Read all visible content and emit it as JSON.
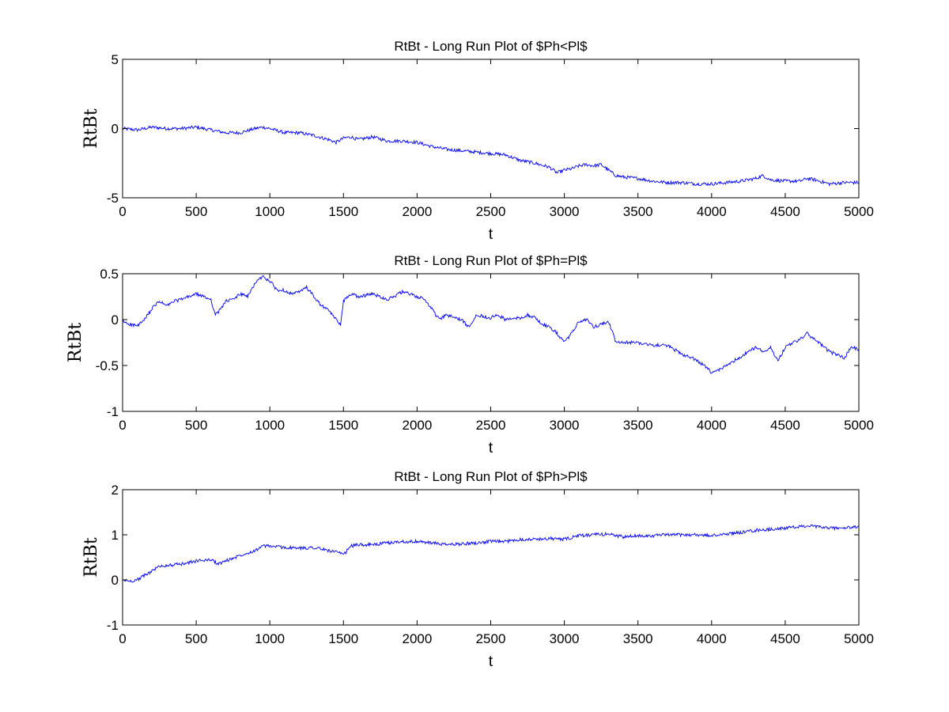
{
  "chart_data": [
    {
      "type": "line",
      "title": "RtBt - Long Run Plot of $Ph<Pl$",
      "xlabel": "t",
      "ylabel": "RtBt",
      "xlim": [
        0,
        5000
      ],
      "ylim": [
        -5,
        5
      ],
      "xticks": [
        0,
        500,
        1000,
        1500,
        2000,
        2500,
        3000,
        3500,
        4000,
        4500,
        5000
      ],
      "yticks": [
        -5,
        0,
        5
      ],
      "ytick_labels": [
        "-5",
        "0",
        "5"
      ],
      "grid": false,
      "color": "#0000ff",
      "series": [
        {
          "x": [
            0,
            100,
            200,
            300,
            400,
            500,
            600,
            700,
            800,
            900,
            950,
            1000,
            1100,
            1200,
            1300,
            1400,
            1450,
            1500,
            1550,
            1600,
            1700,
            1800,
            1900,
            2000,
            2100,
            2200,
            2300,
            2400,
            2500,
            2600,
            2700,
            2800,
            2900,
            2950,
            3000,
            3050,
            3100,
            3150,
            3200,
            3250,
            3300,
            3350,
            3400,
            3500,
            3600,
            3700,
            3800,
            3900,
            4000,
            4100,
            4200,
            4300,
            4350,
            4400,
            4500,
            4600,
            4650,
            4700,
            4800,
            4900,
            5000
          ],
          "values": [
            0,
            -0.1,
            0.1,
            0,
            0,
            0.1,
            -0.1,
            -0.3,
            -0.3,
            0,
            0.1,
            0,
            -0.3,
            -0.3,
            -0.5,
            -0.8,
            -1.0,
            -0.7,
            -0.6,
            -0.8,
            -0.6,
            -0.9,
            -0.9,
            -1.0,
            -1.3,
            -1.5,
            -1.6,
            -1.7,
            -1.8,
            -1.9,
            -2.3,
            -2.5,
            -2.8,
            -3.2,
            -3.0,
            -2.9,
            -2.7,
            -2.6,
            -2.7,
            -2.6,
            -3.0,
            -3.4,
            -3.5,
            -3.6,
            -3.8,
            -3.9,
            -3.9,
            -4.0,
            -4.0,
            -3.9,
            -3.8,
            -3.6,
            -3.4,
            -3.7,
            -3.8,
            -3.8,
            -3.6,
            -3.7,
            -4.0,
            -3.9,
            -3.9
          ]
        }
      ]
    },
    {
      "type": "line",
      "title": "RtBt - Long Run Plot of $Ph=Pl$",
      "xlabel": "t",
      "ylabel": "RtBt",
      "xlim": [
        0,
        5000
      ],
      "ylim": [
        -1,
        0.5
      ],
      "xticks": [
        0,
        500,
        1000,
        1500,
        2000,
        2500,
        3000,
        3500,
        4000,
        4500,
        5000
      ],
      "yticks": [
        -1,
        -0.5,
        0,
        0.5
      ],
      "ytick_labels": [
        "-1",
        "-0.5",
        "0",
        "0.5"
      ],
      "grid": false,
      "color": "#0000ff",
      "series": [
        {
          "x": [
            0,
            50,
            100,
            150,
            200,
            250,
            300,
            350,
            400,
            450,
            500,
            550,
            600,
            630,
            650,
            700,
            750,
            800,
            850,
            900,
            950,
            1000,
            1050,
            1100,
            1150,
            1200,
            1250,
            1300,
            1350,
            1400,
            1450,
            1480,
            1500,
            1550,
            1600,
            1700,
            1800,
            1900,
            1950,
            2000,
            2050,
            2100,
            2150,
            2200,
            2300,
            2350,
            2400,
            2500,
            2550,
            2600,
            2700,
            2750,
            2800,
            2850,
            2900,
            2950,
            3000,
            3050,
            3100,
            3150,
            3200,
            3250,
            3300,
            3350,
            3400,
            3500,
            3600,
            3700,
            3800,
            3850,
            3900,
            3950,
            4000,
            4050,
            4100,
            4200,
            4300,
            4350,
            4400,
            4450,
            4500,
            4550,
            4600,
            4650,
            4700,
            4750,
            4800,
            4850,
            4900,
            4950,
            5000
          ],
          "values": [
            -0.02,
            -0.05,
            -0.07,
            0.0,
            0.12,
            0.2,
            0.15,
            0.2,
            0.22,
            0.25,
            0.28,
            0.25,
            0.22,
            0.05,
            0.08,
            0.2,
            0.22,
            0.28,
            0.25,
            0.4,
            0.47,
            0.42,
            0.32,
            0.32,
            0.28,
            0.3,
            0.35,
            0.25,
            0.15,
            0.1,
            0.0,
            -0.05,
            0.2,
            0.28,
            0.25,
            0.28,
            0.22,
            0.3,
            0.28,
            0.25,
            0.22,
            0.12,
            0.0,
            0.05,
            0.0,
            -0.08,
            0.05,
            0.02,
            0.05,
            0.0,
            0.02,
            0.05,
            0.02,
            -0.05,
            -0.08,
            -0.15,
            -0.25,
            -0.15,
            -0.02,
            0.0,
            -0.08,
            -0.05,
            -0.02,
            -0.25,
            -0.25,
            -0.25,
            -0.28,
            -0.28,
            -0.38,
            -0.4,
            -0.45,
            -0.5,
            -0.58,
            -0.55,
            -0.5,
            -0.4,
            -0.3,
            -0.35,
            -0.3,
            -0.45,
            -0.3,
            -0.25,
            -0.22,
            -0.15,
            -0.22,
            -0.28,
            -0.35,
            -0.38,
            -0.42,
            -0.3,
            -0.32
          ]
        }
      ]
    },
    {
      "type": "line",
      "title": "RtBt - Long Run Plot of $Ph>Pl$",
      "xlabel": "t",
      "ylabel": "RtBt",
      "xlim": [
        0,
        5000
      ],
      "ylim": [
        -1,
        2
      ],
      "xticks": [
        0,
        500,
        1000,
        1500,
        2000,
        2500,
        3000,
        3500,
        4000,
        4500,
        5000
      ],
      "yticks": [
        -1,
        0,
        1,
        2
      ],
      "ytick_labels": [
        "-1",
        "0",
        "1",
        "2"
      ],
      "grid": false,
      "color": "#0000ff",
      "series": [
        {
          "x": [
            0,
            50,
            100,
            150,
            200,
            250,
            300,
            400,
            500,
            600,
            650,
            700,
            750,
            800,
            900,
            950,
            1000,
            1100,
            1200,
            1300,
            1400,
            1450,
            1480,
            1500,
            1550,
            1600,
            1700,
            1800,
            1900,
            2000,
            2100,
            2200,
            2300,
            2400,
            2500,
            2600,
            2700,
            2800,
            2900,
            3000,
            3100,
            3200,
            3300,
            3400,
            3500,
            3600,
            3700,
            3800,
            3900,
            4000,
            4100,
            4200,
            4300,
            4400,
            4500,
            4600,
            4650,
            4700,
            4800,
            4900,
            5000
          ],
          "values": [
            0.0,
            -0.03,
            0.0,
            0.1,
            0.2,
            0.3,
            0.32,
            0.35,
            0.42,
            0.45,
            0.35,
            0.42,
            0.48,
            0.55,
            0.65,
            0.75,
            0.75,
            0.72,
            0.7,
            0.72,
            0.65,
            0.62,
            0.58,
            0.55,
            0.75,
            0.78,
            0.78,
            0.82,
            0.85,
            0.85,
            0.82,
            0.78,
            0.8,
            0.82,
            0.85,
            0.85,
            0.9,
            0.9,
            0.92,
            0.9,
            0.98,
            1.0,
            1.02,
            0.95,
            0.98,
            0.98,
            1.0,
            1.0,
            1.0,
            0.98,
            1.02,
            1.05,
            1.1,
            1.12,
            1.15,
            1.18,
            1.2,
            1.18,
            1.15,
            1.15,
            1.18
          ]
        }
      ]
    }
  ]
}
